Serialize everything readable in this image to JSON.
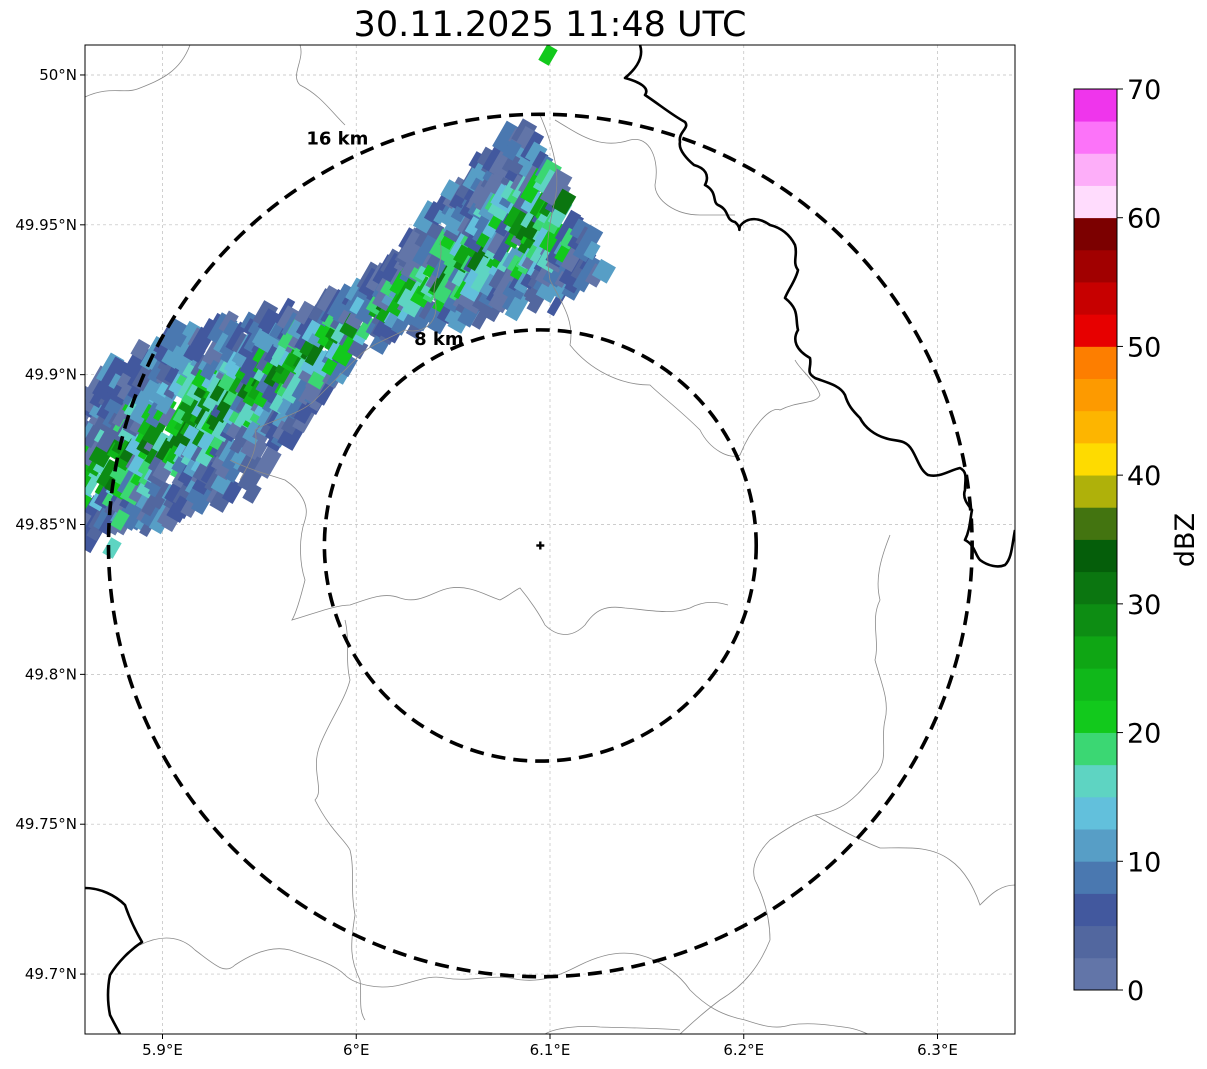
{
  "title": "30.11.2025 11:48 UTC",
  "map": {
    "lon_range": [
      5.86,
      6.34
    ],
    "lat_range": [
      49.68,
      50.01
    ],
    "lon_ticks": [
      {
        "value": 5.9,
        "label": "5.9°E"
      },
      {
        "value": 6.0,
        "label": "6°E"
      },
      {
        "value": 6.1,
        "label": "6.1°E"
      },
      {
        "value": 6.2,
        "label": "6.2°E"
      },
      {
        "value": 6.3,
        "label": "6.3°E"
      }
    ],
    "lat_ticks": [
      {
        "value": 50.0,
        "label": "50°N"
      },
      {
        "value": 49.95,
        "label": "49.95°N"
      },
      {
        "value": 49.9,
        "label": "49.9°N"
      },
      {
        "value": 49.85,
        "label": "49.85°N"
      },
      {
        "value": 49.8,
        "label": "49.8°N"
      },
      {
        "value": 49.75,
        "label": "49.75°N"
      },
      {
        "value": 49.7,
        "label": "49.7°N"
      }
    ],
    "gridlines": true,
    "radar_site": {
      "lon": 6.095,
      "lat": 49.843
    },
    "range_rings": [
      {
        "radius_km": 8,
        "label": "8 km"
      },
      {
        "radius_km": 16,
        "label": "16 km"
      }
    ]
  },
  "colorbar": {
    "label": "dBZ",
    "min": 0,
    "max": 70,
    "ticks": [
      "0",
      "10",
      "20",
      "30",
      "40",
      "50",
      "60",
      "70"
    ],
    "colors": [
      "#6275a8",
      "#52679f",
      "#42589e",
      "#4a78b0",
      "#579ec6",
      "#62c0dc",
      "#5ed4c2",
      "#3bd773",
      "#12c91c",
      "#10b81a",
      "#0fa614",
      "#0d8d13",
      "#0b7610",
      "#055e0a",
      "#437410",
      "#afb10a",
      "#fedb00",
      "#fdb500",
      "#fd9a00",
      "#fd7e00",
      "#e70000",
      "#c70000",
      "#a10000",
      "#7c0000",
      "#ffdcfd",
      "#fdaef9",
      "#fc73f9",
      "#ef35ec"
    ]
  }
}
